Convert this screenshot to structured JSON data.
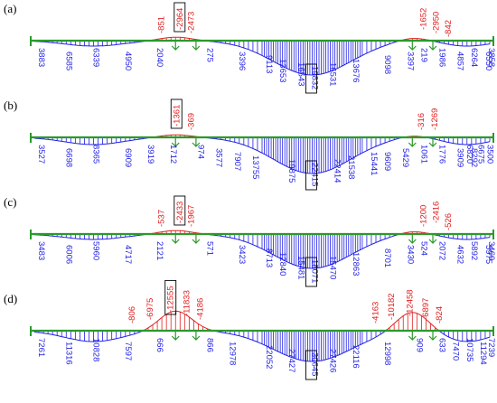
{
  "colors": {
    "beam": "#2a9a2a",
    "negative": "#e02020",
    "positive": "#1f1fe6",
    "box": "#000000"
  },
  "panels": [
    {
      "label": "(a)",
      "positive": [
        {
          "text": "3883",
          "xf": 0.01,
          "d": 0
        },
        {
          "text": "6585",
          "xf": 0.07,
          "d": 1
        },
        {
          "text": "6339",
          "xf": 0.13,
          "d": 0
        },
        {
          "text": "4950",
          "xf": 0.2,
          "d": 1
        },
        {
          "text": "2040",
          "xf": 0.27,
          "d": 0
        },
        {
          "text": "275",
          "xf": 0.38,
          "d": 0
        },
        {
          "text": "3396",
          "xf": 0.45,
          "d": 1
        },
        {
          "text": "9113",
          "xf": 0.51,
          "d": 2
        },
        {
          "text": "13653",
          "xf": 0.54,
          "d": 3
        },
        {
          "text": "16543",
          "xf": 0.58,
          "d": 4
        },
        {
          "text": "19832",
          "xf": 0.61,
          "d": 5,
          "boxed": true
        },
        {
          "text": "16531",
          "xf": 0.65,
          "d": 4
        },
        {
          "text": "13676",
          "xf": 0.7,
          "d": 3
        },
        {
          "text": "9098",
          "xf": 0.77,
          "d": 2
        },
        {
          "text": "3397",
          "xf": 0.82,
          "d": 1
        },
        {
          "text": "219",
          "xf": 0.85,
          "d": 0
        },
        {
          "text": "1986",
          "xf": 0.89,
          "d": 0
        },
        {
          "text": "4857",
          "xf": 0.93,
          "d": 1
        },
        {
          "text": "6264",
          "xf": 0.96,
          "d": 0
        },
        {
          "text": "6550",
          "xf": 0.992,
          "d": 1
        },
        {
          "text": "3858",
          "xf": 0.998,
          "d": 0
        }
      ],
      "negative": [
        {
          "text": "-851",
          "xf": 0.285,
          "h": 1
        },
        {
          "text": "-2964",
          "xf": 0.325,
          "h": 2,
          "boxed": true
        },
        {
          "text": "-2473",
          "xf": 0.35,
          "h": 1
        },
        {
          "text": "-1652",
          "xf": 0.86,
          "h": 2
        },
        {
          "text": "-2950",
          "xf": 0.888,
          "h": 1
        },
        {
          "text": "-842",
          "xf": 0.915,
          "h": 0
        }
      ]
    },
    {
      "label": "(b)",
      "positive": [
        {
          "text": "3527",
          "xf": 0.01,
          "d": 0
        },
        {
          "text": "6698",
          "xf": 0.07,
          "d": 1
        },
        {
          "text": "8365",
          "xf": 0.13,
          "d": 0
        },
        {
          "text": "6909",
          "xf": 0.2,
          "d": 1
        },
        {
          "text": "3919",
          "xf": 0.25,
          "d": 0
        },
        {
          "text": "1712",
          "xf": 0.3,
          "d": 0
        },
        {
          "text": "974",
          "xf": 0.36,
          "d": 0
        },
        {
          "text": "3577",
          "xf": 0.4,
          "d": 1
        },
        {
          "text": "7907",
          "xf": 0.44,
          "d": 2
        },
        {
          "text": "13755",
          "xf": 0.48,
          "d": 3
        },
        {
          "text": "19875",
          "xf": 0.56,
          "d": 4
        },
        {
          "text": "22415",
          "xf": 0.61,
          "d": 5,
          "boxed": true
        },
        {
          "text": "22414",
          "xf": 0.66,
          "d": 4
        },
        {
          "text": "21538",
          "xf": 0.69,
          "d": 3
        },
        {
          "text": "15441",
          "xf": 0.74,
          "d": 2
        },
        {
          "text": "9609",
          "xf": 0.77,
          "d": 2
        },
        {
          "text": "5429",
          "xf": 0.81,
          "d": 1
        },
        {
          "text": "1061",
          "xf": 0.85,
          "d": 0
        },
        {
          "text": "1776",
          "xf": 0.89,
          "d": 0
        },
        {
          "text": "3909",
          "xf": 0.93,
          "d": 1
        },
        {
          "text": "6820",
          "xf": 0.95,
          "d": 0
        },
        {
          "text": "8292",
          "xf": 0.96,
          "d": 1
        },
        {
          "text": "6675",
          "xf": 0.975,
          "d": 0
        },
        {
          "text": "3500",
          "xf": 0.995,
          "d": 0
        }
      ],
      "negative": [
        {
          "text": "-1361",
          "xf": 0.318,
          "h": 2,
          "boxed": true
        },
        {
          "text": "-369",
          "xf": 0.35,
          "h": 1
        },
        {
          "text": "-316",
          "xf": 0.855,
          "h": 1
        },
        {
          "text": "-1269",
          "xf": 0.885,
          "h": 1
        }
      ]
    },
    {
      "label": "(c)",
      "positive": [
        {
          "text": "3483",
          "xf": 0.01,
          "d": 0
        },
        {
          "text": "6006",
          "xf": 0.07,
          "d": 1
        },
        {
          "text": "5960",
          "xf": 0.13,
          "d": 0
        },
        {
          "text": "4717",
          "xf": 0.2,
          "d": 1
        },
        {
          "text": "2121",
          "xf": 0.27,
          "d": 0
        },
        {
          "text": "571",
          "xf": 0.38,
          "d": 0
        },
        {
          "text": "3423",
          "xf": 0.45,
          "d": 1
        },
        {
          "text": "8713",
          "xf": 0.51,
          "d": 2
        },
        {
          "text": "12840",
          "xf": 0.54,
          "d": 3
        },
        {
          "text": "15481",
          "xf": 0.58,
          "d": 4
        },
        {
          "text": "18071",
          "xf": 0.61,
          "d": 5,
          "boxed": true
        },
        {
          "text": "15470",
          "xf": 0.65,
          "d": 4
        },
        {
          "text": "12863",
          "xf": 0.7,
          "d": 3
        },
        {
          "text": "8701",
          "xf": 0.77,
          "d": 2
        },
        {
          "text": "3430",
          "xf": 0.82,
          "d": 1
        },
        {
          "text": "524",
          "xf": 0.85,
          "d": 0
        },
        {
          "text": "2072",
          "xf": 0.89,
          "d": 0
        },
        {
          "text": "4632",
          "xf": 0.93,
          "d": 1
        },
        {
          "text": "5892",
          "xf": 0.96,
          "d": 0
        },
        {
          "text": "5975",
          "xf": 0.992,
          "d": 1
        },
        {
          "text": "3460",
          "xf": 0.998,
          "d": 0
        }
      ],
      "negative": [
        {
          "text": "-537",
          "xf": 0.285,
          "h": 1
        },
        {
          "text": "-2433",
          "xf": 0.325,
          "h": 2,
          "boxed": true
        },
        {
          "text": "-1967",
          "xf": 0.35,
          "h": 1
        },
        {
          "text": "-1200",
          "xf": 0.86,
          "h": 1
        },
        {
          "text": "-2416",
          "xf": 0.888,
          "h": 2
        },
        {
          "text": "-526",
          "xf": 0.915,
          "h": 0
        }
      ]
    },
    {
      "label": "(d)",
      "positive": [
        {
          "text": "7261",
          "xf": 0.01,
          "d": 0
        },
        {
          "text": "11316",
          "xf": 0.07,
          "d": 1
        },
        {
          "text": "10828",
          "xf": 0.13,
          "d": 0
        },
        {
          "text": "7597",
          "xf": 0.2,
          "d": 1
        },
        {
          "text": "666",
          "xf": 0.27,
          "d": 0
        },
        {
          "text": "866",
          "xf": 0.38,
          "d": 0
        },
        {
          "text": "12978",
          "xf": 0.43,
          "d": 1
        },
        {
          "text": "22052",
          "xf": 0.51,
          "d": 2
        },
        {
          "text": "27427",
          "xf": 0.56,
          "d": 3
        },
        {
          "text": "30645",
          "xf": 0.61,
          "d": 4,
          "boxed": true
        },
        {
          "text": "27426",
          "xf": 0.65,
          "d": 3
        },
        {
          "text": "22116",
          "xf": 0.7,
          "d": 2
        },
        {
          "text": "12998",
          "xf": 0.77,
          "d": 1
        },
        {
          "text": "909",
          "xf": 0.84,
          "d": 0
        },
        {
          "text": "633",
          "xf": 0.89,
          "d": 0
        },
        {
          "text": "7470",
          "xf": 0.92,
          "d": 1
        },
        {
          "text": "10735",
          "xf": 0.95,
          "d": 0
        },
        {
          "text": "11294",
          "xf": 0.98,
          "d": 1
        },
        {
          "text": "7239",
          "xf": 0.998,
          "d": 0
        }
      ],
      "negative": [
        {
          "text": "-806",
          "xf": 0.22,
          "h": 1
        },
        {
          "text": "-6975",
          "xf": 0.26,
          "h": 2
        },
        {
          "text": "-12555",
          "xf": 0.305,
          "h": 4,
          "boxed": true
        },
        {
          "text": "-11833",
          "xf": 0.34,
          "h": 3
        },
        {
          "text": "-4186",
          "xf": 0.37,
          "h": 2
        },
        {
          "text": "-4163",
          "xf": 0.755,
          "h": 1
        },
        {
          "text": "-10182",
          "xf": 0.79,
          "h": 2
        },
        {
          "text": "-12458",
          "xf": 0.83,
          "h": 3
        },
        {
          "text": "-6897",
          "xf": 0.865,
          "h": 2
        },
        {
          "text": "-824",
          "xf": 0.895,
          "h": 1
        }
      ]
    }
  ]
}
